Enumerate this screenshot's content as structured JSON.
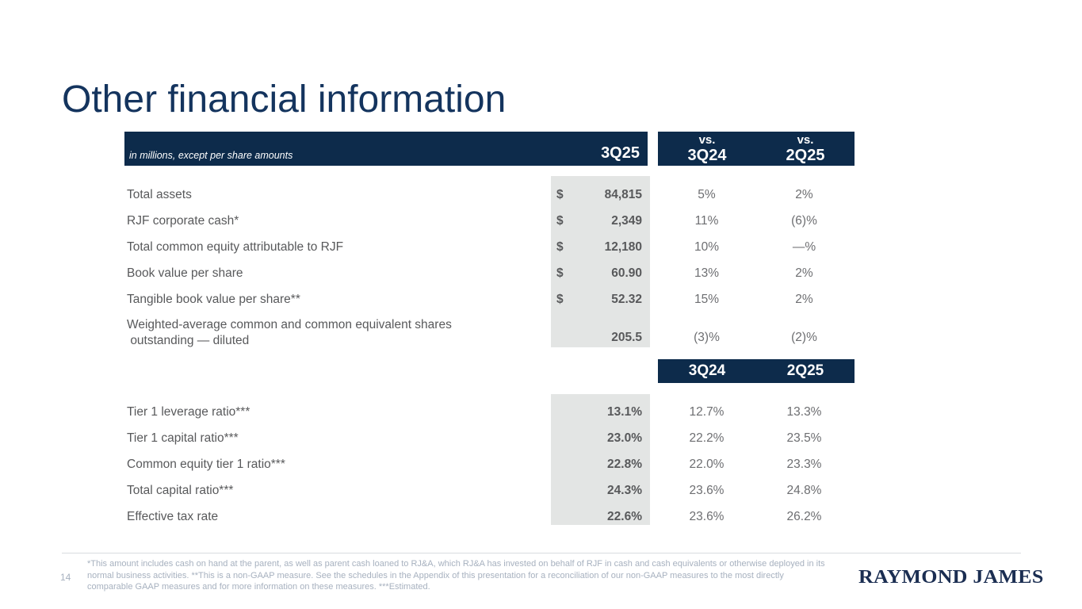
{
  "slide": {
    "title": "Other financial information",
    "page_number": "14",
    "brand": "RAYMOND JAMES"
  },
  "colors": {
    "navy_bar": "#0d2b4b",
    "title_text": "#14345e",
    "shaded_column": "#e3e5e4",
    "label_text": "#58595b",
    "value_text": "#6d6e71",
    "footnote_text": "#a7b1bf",
    "logo_text": "#1b2e52",
    "divider": "#d8dbdf"
  },
  "main_table": {
    "note": "in millions, except per share amounts",
    "current_period": "3Q25",
    "vs_label": "vs.",
    "vs_columns": [
      "3Q24",
      "2Q25"
    ],
    "rows": [
      {
        "label": "Total assets",
        "currency": "$",
        "value": "84,815",
        "vs_3q24": "5%",
        "vs_2q25": "2%"
      },
      {
        "label": "RJF corporate cash*",
        "currency": "$",
        "value": "2,349",
        "vs_3q24": "11%",
        "vs_2q25": "(6)%"
      },
      {
        "label": "Total common equity attributable to RJF",
        "currency": "$",
        "value": "12,180",
        "vs_3q24": "10%",
        "vs_2q25": "—%"
      },
      {
        "label": "Book value per share",
        "currency": "$",
        "value": "60.90",
        "vs_3q24": "13%",
        "vs_2q25": "2%"
      },
      {
        "label": "Tangible book value per share**",
        "currency": "$",
        "value": "52.32",
        "vs_3q24": "15%",
        "vs_2q25": "2%"
      },
      {
        "label": "Weighted-average common and common equivalent shares",
        "label_line2": " outstanding — diluted",
        "currency": "",
        "value": "205.5",
        "vs_3q24": "(3)%",
        "vs_2q25": "(2)%"
      }
    ]
  },
  "ratio_table": {
    "columns": [
      "3Q24",
      "2Q25"
    ],
    "rows": [
      {
        "label": "Tier 1 leverage ratio***",
        "value": "13.1%",
        "col_3q24": "12.7%",
        "col_2q25": "13.3%"
      },
      {
        "label": "Tier 1 capital ratio***",
        "value": "23.0%",
        "col_3q24": "22.2%",
        "col_2q25": "23.5%"
      },
      {
        "label": "Common equity tier 1 ratio***",
        "value": "22.8%",
        "col_3q24": "22.0%",
        "col_2q25": "23.3%"
      },
      {
        "label": "Total capital ratio***",
        "value": "24.3%",
        "col_3q24": "23.6%",
        "col_2q25": "24.8%"
      },
      {
        "label": "Effective tax rate",
        "value": "22.6%",
        "col_3q24": "23.6%",
        "col_2q25": "26.2%"
      }
    ]
  },
  "footer": {
    "footnote": "*This amount includes cash on hand at the parent, as well as parent cash loaned to RJ&A, which RJ&A has invested on behalf of RJF in cash and cash equivalents or otherwise deployed in its normal business activities. **This is a non-GAAP measure. See the schedules in the Appendix of this presentation for a reconciliation of our non-GAAP measures to the most directly comparable GAAP measures and for more information on these measures. ***Estimated."
  }
}
